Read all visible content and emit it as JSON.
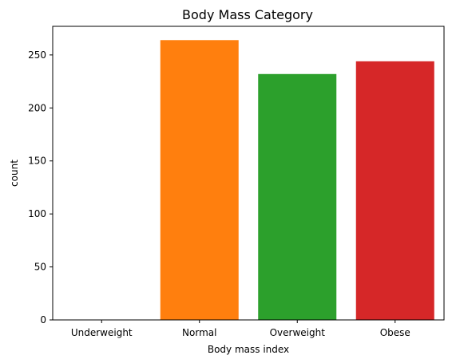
{
  "chart_data": {
    "type": "bar",
    "title": "Body Mass Category",
    "xlabel": "Body mass index",
    "ylabel": "count",
    "categories": [
      "Underweight",
      "Normal",
      "Overweight",
      "Obese"
    ],
    "values": [
      0,
      264,
      232,
      244
    ],
    "colors": [
      "#1f77b4",
      "#ff7f0e",
      "#2ca02c",
      "#d62728"
    ],
    "ylim": [
      0,
      277
    ],
    "yticks": [
      0,
      50,
      100,
      150,
      200,
      250
    ],
    "grid": false,
    "legend": "none"
  }
}
